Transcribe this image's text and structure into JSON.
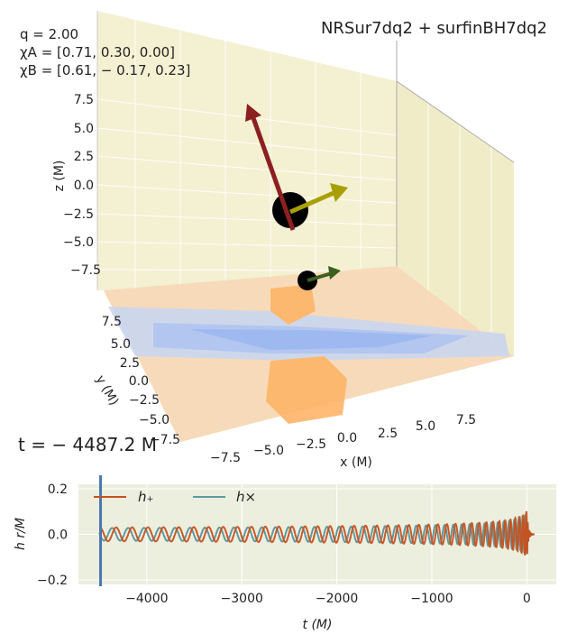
{
  "annotations": {
    "q": "q = 2.00",
    "chi_a": "χA = [0.71, 0.30, 0.00]",
    "chi_b": "χB = [0.61, − 0.17, 0.23]",
    "title": "NRSur7dq2 + surfinBH7dq2",
    "time": "t = − 4487.2 M"
  },
  "chart_data": [
    {
      "type": "scatter",
      "title": "NRSur7dq2 + surfinBH7dq2",
      "kind": "3d-binary-black-hole",
      "xlabel": "x (M)",
      "ylabel": "y (M)",
      "zlabel": "z (M)",
      "xticks": [
        "−7.5",
        "−5.0",
        "−2.5",
        "0.0",
        "2.5",
        "5.0",
        "7.5"
      ],
      "yticks": [
        "7.5",
        "5.0",
        "2.5",
        "0.0",
        "−2.5",
        "−5.0",
        "−7.5"
      ],
      "zticks": [
        "7.5",
        "5.0",
        "2.5",
        "0.0",
        "−2.5",
        "−5.0",
        "−7.5"
      ],
      "xlim": [
        -10,
        10
      ],
      "ylim": [
        -10,
        10
      ],
      "zlim": [
        -10,
        10
      ],
      "arrow_colors": {
        "chi_a": "#8b2020",
        "chi_b": "#a8a000"
      },
      "plane_colors": {
        "hot": "#ffb060",
        "cold": "#90b0f0",
        "bg": "#f5ecc8"
      }
    },
    {
      "type": "line",
      "xlabel": "t (M)",
      "ylabel": "h r/M",
      "xlim": [
        -4720,
        310
      ],
      "ylim": [
        -0.22,
        0.22
      ],
      "xticks": [
        -4000,
        -3000,
        -2000,
        -1000,
        0
      ],
      "xtick_labels": [
        "−4000",
        "−3000",
        "−2000",
        "−1000",
        "0"
      ],
      "yticks": [
        0.2,
        0.0,
        -0.2
      ],
      "ytick_labels": [
        "0.2",
        "0.0",
        "−0.2"
      ],
      "current_time": -4487.2,
      "legend": "top-left",
      "series": [
        {
          "name": "h+",
          "label": "h₊",
          "color": "#c8501e",
          "start_amplitude": 0.03,
          "peak_amplitude": 0.12,
          "t_start": -4500,
          "t_peak": 0
        },
        {
          "name": "hx",
          "label": "h×",
          "color": "#5f9aa0",
          "start_amplitude": 0.03,
          "peak_amplitude": 0.11,
          "t_start": -4500,
          "t_peak": 0
        }
      ]
    }
  ]
}
